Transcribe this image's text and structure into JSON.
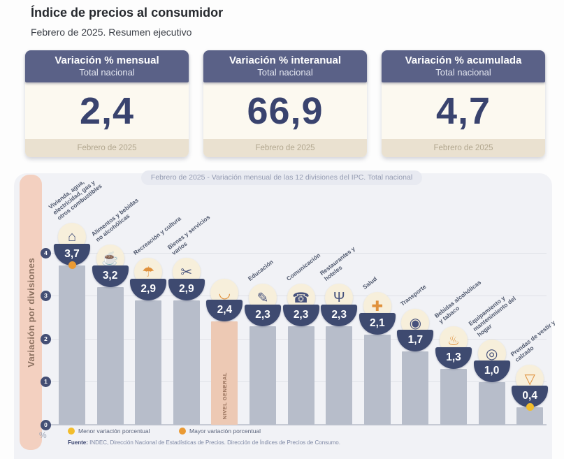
{
  "page": {
    "title": "Índice de precios al consumidor",
    "subtitle": "Febrero de 2025. Resumen ejecutivo"
  },
  "summary_cards": [
    {
      "title": "Variación % mensual",
      "scope": "Total nacional",
      "value": "2,4",
      "period": "Febrero de 2025"
    },
    {
      "title": "Variación % interanual",
      "scope": "Total nacional",
      "value": "66,9",
      "period": "Febrero de 2025"
    },
    {
      "title": "Variación % acumulada",
      "scope": "Total nacional",
      "value": "4,7",
      "period": "Febrero de 2025"
    }
  ],
  "chart": {
    "legend": [
      {
        "id": "menor",
        "label": "Menor variación porcentual",
        "color": "#f2bd2c"
      },
      {
        "id": "mayor",
        "label": "Mayor variación porcentual",
        "color": "#ea9a34"
      }
    ],
    "source_label": "Fuente:",
    "source_text": " INDEC, Dirección Nacional de Estadísticas de Precios. Dirección de Índices de Precios de Consumo."
  },
  "chart_data": {
    "type": "bar",
    "title": "Febrero de 2025 - Variación mensual de las 12 divisiones del IPC. Total nacional",
    "ylabel": "Variación por divisiones",
    "axis_unit": "%",
    "ylim": [
      0,
      4
    ],
    "yticks": [
      4,
      3,
      2,
      1,
      0
    ],
    "grid": true,
    "categories": [
      "Vivienda, agua, electricidad, gas y otros combustibles",
      "Alimentos y bebidas no alcohólicas",
      "Recreación y cultura",
      "Bienes y servicios varios",
      "NIVEL GENERAL",
      "Educación",
      "Comunicación",
      "Restaurantes y hoteles",
      "Salud",
      "Transporte",
      "Bebidas alcohólicas y tabaco",
      "Equipamiento y mantenimiento del hogar",
      "Prendas de vestir y calzado"
    ],
    "values": [
      3.7,
      3.2,
      2.9,
      2.9,
      2.4,
      2.3,
      2.3,
      2.3,
      2.1,
      1.7,
      1.3,
      1.0,
      0.4
    ],
    "highlight_index": 4,
    "bar_color": "#b7bdca",
    "highlight_color": "#edc9b4",
    "markers": {
      "mayor_index": 0,
      "menor_index": 12
    },
    "icons": [
      {
        "name": "housing-utilities-icon",
        "glyph": "⌂",
        "color": "#46517c"
      },
      {
        "name": "food-icon",
        "glyph": "☕",
        "color": "#e0913c"
      },
      {
        "name": "beach-umbrella-icon",
        "glyph": "☂",
        "color": "#e0913c"
      },
      {
        "name": "scissors-icon",
        "glyph": "✂",
        "color": "#46517c"
      },
      {
        "name": "basket-icon",
        "glyph": "◡",
        "color": "#e0913c"
      },
      {
        "name": "education-pencil-icon",
        "glyph": "✎",
        "color": "#46517c"
      },
      {
        "name": "phone-icon",
        "glyph": "☎",
        "color": "#46517c"
      },
      {
        "name": "restaurant-fork-icon",
        "glyph": "Ψ",
        "color": "#46517c"
      },
      {
        "name": "health-cross-icon",
        "glyph": "✚",
        "color": "#e0913c"
      },
      {
        "name": "bus-icon",
        "glyph": "◉",
        "color": "#46517c"
      },
      {
        "name": "bottle-icon",
        "glyph": "♨",
        "color": "#e0913c"
      },
      {
        "name": "washing-machine-icon",
        "glyph": "◎",
        "color": "#46517c"
      },
      {
        "name": "tshirt-icon",
        "glyph": "▽",
        "color": "#e0913c"
      }
    ]
  }
}
